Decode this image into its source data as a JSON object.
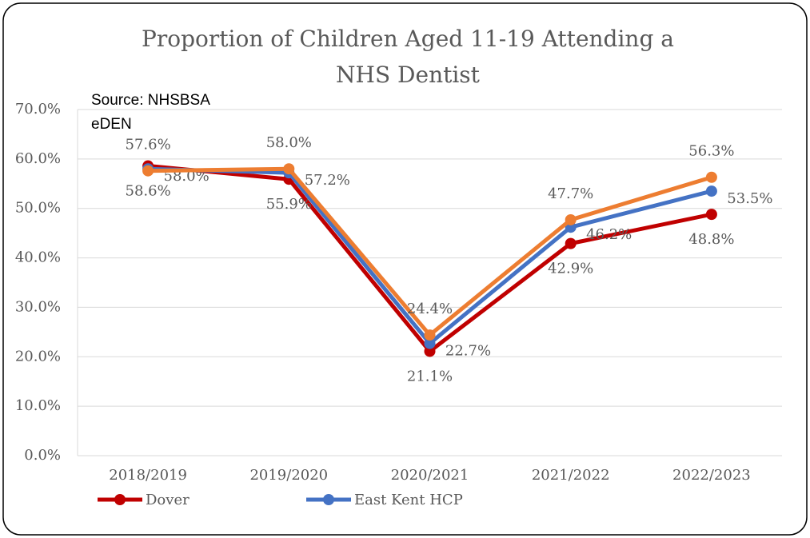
{
  "chart_data": {
    "type": "line",
    "title": "Proportion of Children Aged 11-19 Attending a NHS Dentist",
    "annotations": [
      "Source: NHSBSA",
      "eDEN"
    ],
    "categories": [
      "2018/2019",
      "2019/2020",
      "2020/2021",
      "2021/2022",
      "2022/2023"
    ],
    "series": [
      {
        "name": "Dover",
        "color": "#c00000",
        "values": [
          58.6,
          55.9,
          21.1,
          42.9,
          48.8
        ],
        "value_labels": [
          "58.6%",
          "55.9%",
          "21.1%",
          "42.9%",
          "48.8%"
        ]
      },
      {
        "name": "East Kent HCP",
        "color": "#4472c4",
        "values": [
          58.0,
          57.2,
          22.7,
          46.2,
          53.5
        ],
        "value_labels": [
          "58.0%",
          "57.2%",
          "22.7%",
          "46.2%",
          "53.5%"
        ]
      },
      {
        "color": "#ed7d31",
        "values": [
          57.6,
          58.0,
          24.4,
          47.7,
          56.3
        ],
        "value_labels": [
          "57.6%",
          "58.0%",
          "24.4%",
          "47.7%",
          "56.3%"
        ]
      }
    ],
    "ylim": [
      0,
      70
    ],
    "yticks": [
      {
        "value": 0,
        "label": "0.0%"
      },
      {
        "value": 10,
        "label": "10.0%"
      },
      {
        "value": 20,
        "label": "20.0%"
      },
      {
        "value": 30,
        "label": "30.0%"
      },
      {
        "value": 40,
        "label": "40.0%"
      },
      {
        "value": 50,
        "label": "50.0%"
      },
      {
        "value": 60,
        "label": "60.0%"
      },
      {
        "value": 70,
        "label": "70.0%"
      }
    ],
    "grid": true
  }
}
